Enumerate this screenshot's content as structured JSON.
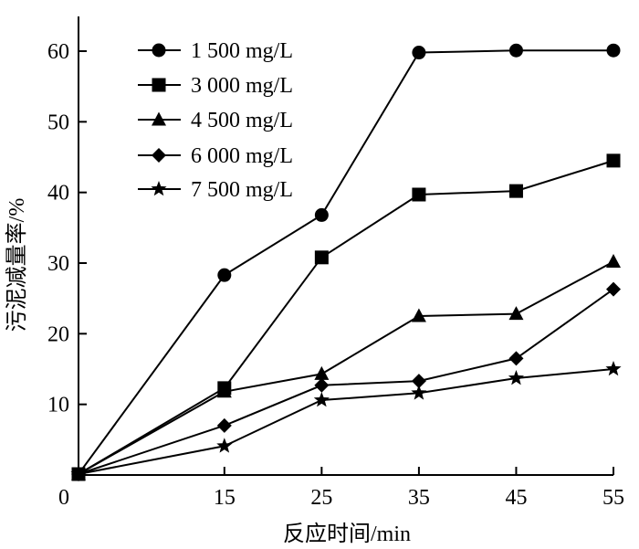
{
  "chart_data": {
    "type": "line",
    "title": "",
    "xlabel": "反应时间/min",
    "ylabel": "污泥减量率/%",
    "x": [
      0,
      15,
      25,
      35,
      45,
      55
    ],
    "x_ticks": [
      "0",
      "15",
      "25",
      "35",
      "45",
      "55"
    ],
    "y_ticks": [
      "10",
      "20",
      "30",
      "40",
      "50",
      "60"
    ],
    "xlim": [
      0,
      55
    ],
    "ylim": [
      0,
      65
    ],
    "grid": false,
    "legend_position": "top-left",
    "series": [
      {
        "name": "1 500 mg/L",
        "marker": "circle",
        "values": [
          0,
          28.3,
          36.8,
          59.8,
          60.1,
          60.1
        ]
      },
      {
        "name": "3 000 mg/L",
        "marker": "square",
        "values": [
          0,
          12.3,
          30.8,
          39.7,
          40.2,
          44.5
        ]
      },
      {
        "name": "4 500 mg/L",
        "marker": "triangle",
        "values": [
          0,
          11.8,
          14.3,
          22.5,
          22.8,
          30.2
        ]
      },
      {
        "name": "6 000 mg/L",
        "marker": "diamond",
        "values": [
          0,
          7.0,
          12.7,
          13.3,
          16.5,
          26.3
        ]
      },
      {
        "name": "7 500 mg/L",
        "marker": "star",
        "values": [
          0,
          4.1,
          10.6,
          11.6,
          13.7,
          15.0
        ]
      }
    ],
    "colors": {
      "line": "#000000",
      "background": "#ffffff"
    }
  }
}
